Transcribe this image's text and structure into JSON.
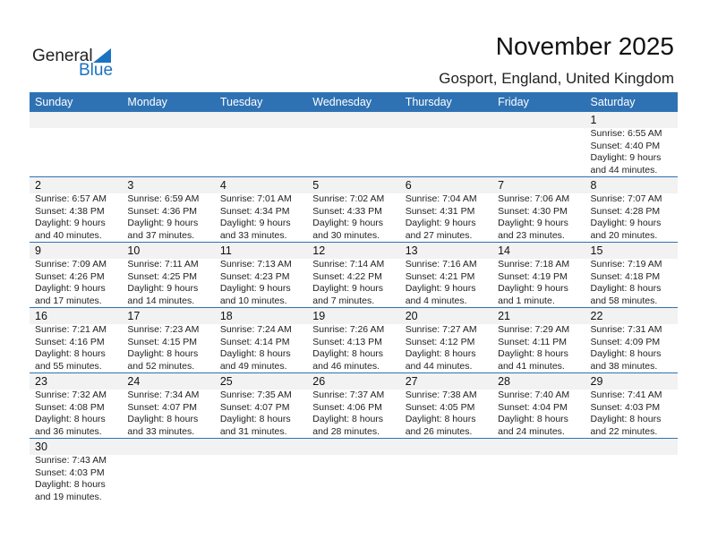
{
  "logo": {
    "text1": "General",
    "text2": "Blue"
  },
  "header": {
    "title": "November 2025",
    "location": "Gosport, England, United Kingdom"
  },
  "colors": {
    "accent": "#2f72b4",
    "logo_blue": "#1a73c0",
    "day_band": "#f2f2f2"
  },
  "weekdays": [
    "Sunday",
    "Monday",
    "Tuesday",
    "Wednesday",
    "Thursday",
    "Friday",
    "Saturday"
  ],
  "weeks": [
    [
      null,
      null,
      null,
      null,
      null,
      null,
      {
        "day": "1",
        "sunrise": "Sunrise: 6:55 AM",
        "sunset": "Sunset: 4:40 PM",
        "daylight1": "Daylight: 9 hours",
        "daylight2": "and 44 minutes."
      }
    ],
    [
      {
        "day": "2",
        "sunrise": "Sunrise: 6:57 AM",
        "sunset": "Sunset: 4:38 PM",
        "daylight1": "Daylight: 9 hours",
        "daylight2": "and 40 minutes."
      },
      {
        "day": "3",
        "sunrise": "Sunrise: 6:59 AM",
        "sunset": "Sunset: 4:36 PM",
        "daylight1": "Daylight: 9 hours",
        "daylight2": "and 37 minutes."
      },
      {
        "day": "4",
        "sunrise": "Sunrise: 7:01 AM",
        "sunset": "Sunset: 4:34 PM",
        "daylight1": "Daylight: 9 hours",
        "daylight2": "and 33 minutes."
      },
      {
        "day": "5",
        "sunrise": "Sunrise: 7:02 AM",
        "sunset": "Sunset: 4:33 PM",
        "daylight1": "Daylight: 9 hours",
        "daylight2": "and 30 minutes."
      },
      {
        "day": "6",
        "sunrise": "Sunrise: 7:04 AM",
        "sunset": "Sunset: 4:31 PM",
        "daylight1": "Daylight: 9 hours",
        "daylight2": "and 27 minutes."
      },
      {
        "day": "7",
        "sunrise": "Sunrise: 7:06 AM",
        "sunset": "Sunset: 4:30 PM",
        "daylight1": "Daylight: 9 hours",
        "daylight2": "and 23 minutes."
      },
      {
        "day": "8",
        "sunrise": "Sunrise: 7:07 AM",
        "sunset": "Sunset: 4:28 PM",
        "daylight1": "Daylight: 9 hours",
        "daylight2": "and 20 minutes."
      }
    ],
    [
      {
        "day": "9",
        "sunrise": "Sunrise: 7:09 AM",
        "sunset": "Sunset: 4:26 PM",
        "daylight1": "Daylight: 9 hours",
        "daylight2": "and 17 minutes."
      },
      {
        "day": "10",
        "sunrise": "Sunrise: 7:11 AM",
        "sunset": "Sunset: 4:25 PM",
        "daylight1": "Daylight: 9 hours",
        "daylight2": "and 14 minutes."
      },
      {
        "day": "11",
        "sunrise": "Sunrise: 7:13 AM",
        "sunset": "Sunset: 4:23 PM",
        "daylight1": "Daylight: 9 hours",
        "daylight2": "and 10 minutes."
      },
      {
        "day": "12",
        "sunrise": "Sunrise: 7:14 AM",
        "sunset": "Sunset: 4:22 PM",
        "daylight1": "Daylight: 9 hours",
        "daylight2": "and 7 minutes."
      },
      {
        "day": "13",
        "sunrise": "Sunrise: 7:16 AM",
        "sunset": "Sunset: 4:21 PM",
        "daylight1": "Daylight: 9 hours",
        "daylight2": "and 4 minutes."
      },
      {
        "day": "14",
        "sunrise": "Sunrise: 7:18 AM",
        "sunset": "Sunset: 4:19 PM",
        "daylight1": "Daylight: 9 hours",
        "daylight2": "and 1 minute."
      },
      {
        "day": "15",
        "sunrise": "Sunrise: 7:19 AM",
        "sunset": "Sunset: 4:18 PM",
        "daylight1": "Daylight: 8 hours",
        "daylight2": "and 58 minutes."
      }
    ],
    [
      {
        "day": "16",
        "sunrise": "Sunrise: 7:21 AM",
        "sunset": "Sunset: 4:16 PM",
        "daylight1": "Daylight: 8 hours",
        "daylight2": "and 55 minutes."
      },
      {
        "day": "17",
        "sunrise": "Sunrise: 7:23 AM",
        "sunset": "Sunset: 4:15 PM",
        "daylight1": "Daylight: 8 hours",
        "daylight2": "and 52 minutes."
      },
      {
        "day": "18",
        "sunrise": "Sunrise: 7:24 AM",
        "sunset": "Sunset: 4:14 PM",
        "daylight1": "Daylight: 8 hours",
        "daylight2": "and 49 minutes."
      },
      {
        "day": "19",
        "sunrise": "Sunrise: 7:26 AM",
        "sunset": "Sunset: 4:13 PM",
        "daylight1": "Daylight: 8 hours",
        "daylight2": "and 46 minutes."
      },
      {
        "day": "20",
        "sunrise": "Sunrise: 7:27 AM",
        "sunset": "Sunset: 4:12 PM",
        "daylight1": "Daylight: 8 hours",
        "daylight2": "and 44 minutes."
      },
      {
        "day": "21",
        "sunrise": "Sunrise: 7:29 AM",
        "sunset": "Sunset: 4:11 PM",
        "daylight1": "Daylight: 8 hours",
        "daylight2": "and 41 minutes."
      },
      {
        "day": "22",
        "sunrise": "Sunrise: 7:31 AM",
        "sunset": "Sunset: 4:09 PM",
        "daylight1": "Daylight: 8 hours",
        "daylight2": "and 38 minutes."
      }
    ],
    [
      {
        "day": "23",
        "sunrise": "Sunrise: 7:32 AM",
        "sunset": "Sunset: 4:08 PM",
        "daylight1": "Daylight: 8 hours",
        "daylight2": "and 36 minutes."
      },
      {
        "day": "24",
        "sunrise": "Sunrise: 7:34 AM",
        "sunset": "Sunset: 4:07 PM",
        "daylight1": "Daylight: 8 hours",
        "daylight2": "and 33 minutes."
      },
      {
        "day": "25",
        "sunrise": "Sunrise: 7:35 AM",
        "sunset": "Sunset: 4:07 PM",
        "daylight1": "Daylight: 8 hours",
        "daylight2": "and 31 minutes."
      },
      {
        "day": "26",
        "sunrise": "Sunrise: 7:37 AM",
        "sunset": "Sunset: 4:06 PM",
        "daylight1": "Daylight: 8 hours",
        "daylight2": "and 28 minutes."
      },
      {
        "day": "27",
        "sunrise": "Sunrise: 7:38 AM",
        "sunset": "Sunset: 4:05 PM",
        "daylight1": "Daylight: 8 hours",
        "daylight2": "and 26 minutes."
      },
      {
        "day": "28",
        "sunrise": "Sunrise: 7:40 AM",
        "sunset": "Sunset: 4:04 PM",
        "daylight1": "Daylight: 8 hours",
        "daylight2": "and 24 minutes."
      },
      {
        "day": "29",
        "sunrise": "Sunrise: 7:41 AM",
        "sunset": "Sunset: 4:03 PM",
        "daylight1": "Daylight: 8 hours",
        "daylight2": "and 22 minutes."
      }
    ],
    [
      {
        "day": "30",
        "sunrise": "Sunrise: 7:43 AM",
        "sunset": "Sunset: 4:03 PM",
        "daylight1": "Daylight: 8 hours",
        "daylight2": "and 19 minutes."
      },
      null,
      null,
      null,
      null,
      null,
      null
    ]
  ]
}
